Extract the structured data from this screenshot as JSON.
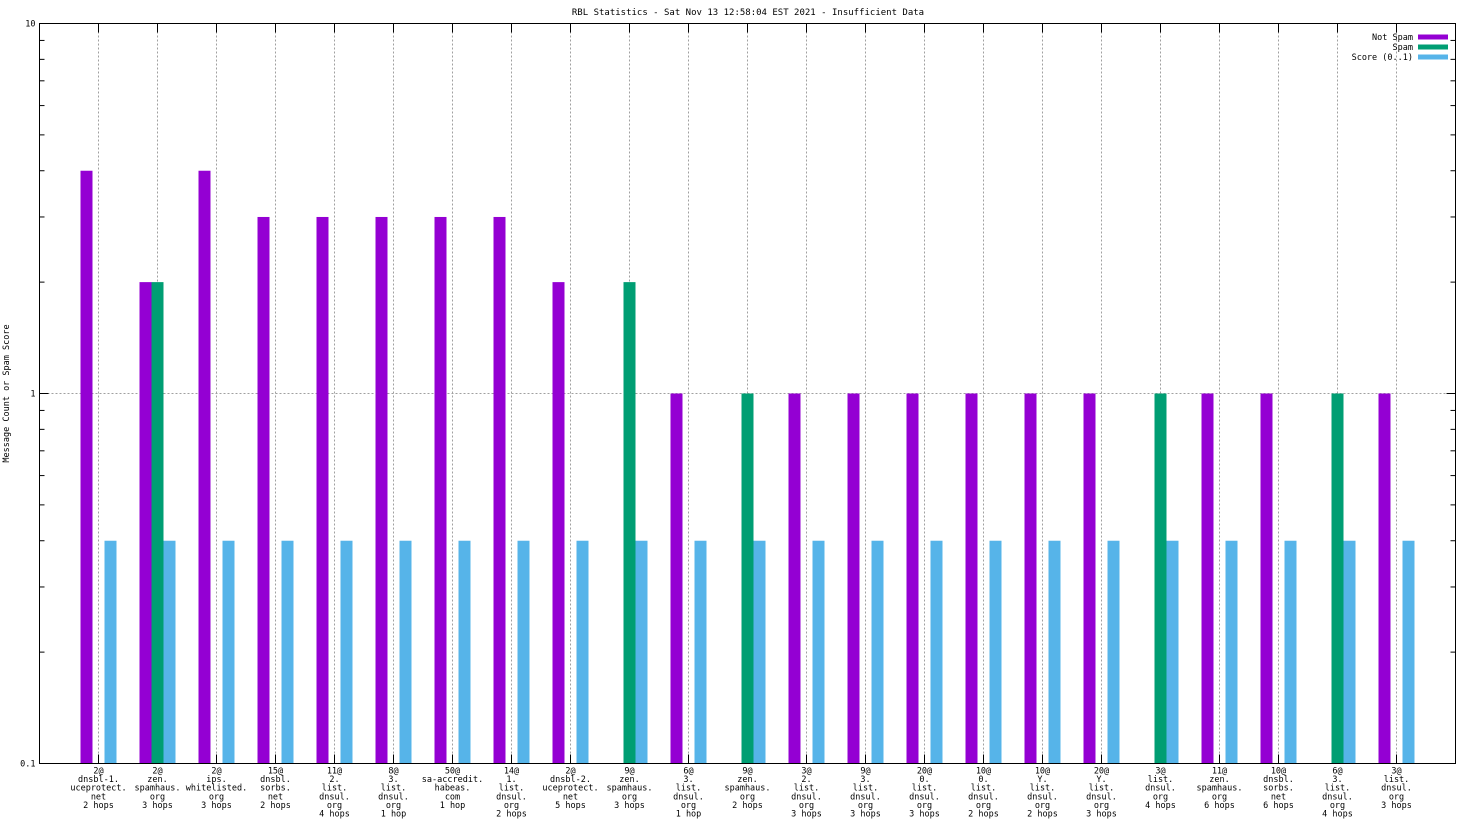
{
  "chart_data": {
    "type": "bar",
    "title": "RBL Statistics - Sat Nov 13 12:58:04 EST 2021 - Insufficient Data",
    "xlabel": "",
    "ylabel": "Message Count or Spam Score",
    "yscale": "log",
    "ylim": [
      0.1,
      10
    ],
    "yticks": [
      {
        "value": 0.1,
        "label": "0.1"
      },
      {
        "value": 1,
        "label": "1"
      },
      {
        "value": 10,
        "label": "10"
      }
    ],
    "grid": true,
    "legend_position": "top-right",
    "categories": [
      [
        "2@",
        "dnsbl-1.",
        "uceprotect.",
        "net",
        "2 hops"
      ],
      [
        "2@",
        "zen.",
        "spamhaus.",
        "org",
        "3 hops"
      ],
      [
        "2@",
        "ips.",
        "whitelisted.",
        "org",
        "3 hops"
      ],
      [
        "15@",
        "dnsbl.",
        "sorbs.",
        "net",
        "2 hops"
      ],
      [
        "11@",
        "2.",
        "list.",
        "dnsul.",
        "org",
        "4 hops"
      ],
      [
        "8@",
        "3.",
        "list.",
        "dnsul.",
        "org",
        "1 hop"
      ],
      [
        "50@",
        "sa-accredit.",
        "habeas.",
        "com",
        "1 hop"
      ],
      [
        "14@",
        "1.",
        "list.",
        "dnsul.",
        "org",
        "2 hops"
      ],
      [
        "2@",
        "dnsbl-2.",
        "uceprotect.",
        "net",
        "5 hops"
      ],
      [
        "9@",
        "zen.",
        "spamhaus.",
        "org",
        "3 hops"
      ],
      [
        "6@",
        "3.",
        "list.",
        "dnsul.",
        "org",
        "1 hop"
      ],
      [
        "9@",
        "zen.",
        "spamhaus.",
        "org",
        "2 hops"
      ],
      [
        "3@",
        "2.",
        "list.",
        "dnsul.",
        "org",
        "3 hops"
      ],
      [
        "9@",
        "3.",
        "list.",
        "dnsul.",
        "org",
        "3 hops"
      ],
      [
        "20@",
        "0.",
        "list.",
        "dnsul.",
        "org",
        "3 hops"
      ],
      [
        "10@",
        "0.",
        "list.",
        "dnsul.",
        "org",
        "2 hops"
      ],
      [
        "10@",
        "Y.",
        "list.",
        "dnsul.",
        "org",
        "2 hops"
      ],
      [
        "20@",
        "Y.",
        "list.",
        "dnsul.",
        "org",
        "3 hops"
      ],
      [
        "3@",
        "list.",
        "dnsul.",
        "org",
        "4 hops"
      ],
      [
        "11@",
        "zen.",
        "spamhaus.",
        "org",
        "6 hops"
      ],
      [
        "10@",
        "dnsbl.",
        "sorbs.",
        "net",
        "6 hops"
      ],
      [
        "6@",
        "3.",
        "list.",
        "dnsul.",
        "org",
        "4 hops"
      ],
      [
        "3@",
        "list.",
        "dnsul.",
        "org",
        "3 hops"
      ]
    ],
    "series": [
      {
        "name": "Not Spam",
        "color": "#9400d3",
        "values": [
          4,
          2,
          4,
          3,
          3,
          3,
          3,
          3,
          2,
          null,
          1,
          null,
          1,
          1,
          1,
          1,
          1,
          1,
          null,
          1,
          1,
          null,
          1
        ]
      },
      {
        "name": "Spam",
        "color": "#009e73",
        "values": [
          null,
          2,
          null,
          null,
          null,
          null,
          null,
          null,
          null,
          2,
          null,
          1,
          null,
          null,
          null,
          null,
          null,
          null,
          1,
          null,
          null,
          1,
          null
        ]
      },
      {
        "name": "Score (0..1)",
        "color": "#56b4e9",
        "values": [
          0.4,
          0.4,
          0.4,
          0.4,
          0.4,
          0.4,
          0.4,
          0.4,
          0.4,
          0.4,
          0.4,
          0.4,
          0.4,
          0.4,
          0.4,
          0.4,
          0.4,
          0.4,
          0.4,
          0.4,
          0.4,
          0.4,
          0.4
        ]
      }
    ]
  }
}
